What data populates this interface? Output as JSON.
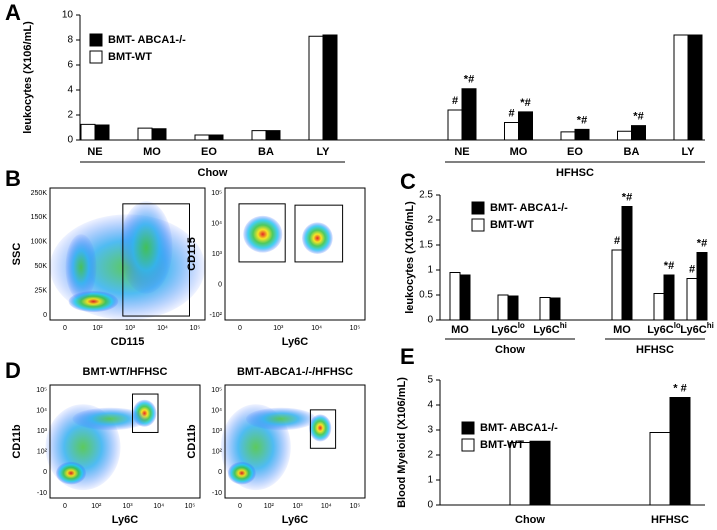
{
  "chart_data": [
    {
      "type": "bar",
      "panel_label": "A",
      "ylabel": "leukocytes (X106/mL)",
      "categories": [
        "NE",
        "MO",
        "EO",
        "BA",
        "LY",
        "NE",
        "MO",
        "EO",
        "BA",
        "LY"
      ],
      "group_labels": [
        "Chow",
        "HFHSC"
      ],
      "series": [
        {
          "name": "BMT- ABCA1-/-",
          "color": "#000000",
          "values": [
            1.2,
            0.9,
            0.4,
            0.75,
            8.4,
            4.1,
            2.25,
            0.85,
            1.15,
            8.4
          ],
          "markers": [
            null,
            null,
            null,
            null,
            null,
            "*#",
            "*#",
            "*#",
            "*#",
            null
          ]
        },
        {
          "name": "BMT-WT",
          "color": "#ffffff",
          "values": [
            1.25,
            0.95,
            0.4,
            0.75,
            8.3,
            2.4,
            1.4,
            0.65,
            0.7,
            8.4
          ],
          "markers": [
            null,
            null,
            null,
            null,
            null,
            "#",
            "#",
            null,
            null,
            null
          ]
        }
      ],
      "ylim": [
        0,
        10
      ],
      "yticks": [
        0,
        2,
        4,
        6,
        8,
        10
      ]
    },
    {
      "type": "bar",
      "panel_label": "C",
      "ylabel": "leukocytes (X106/mL)",
      "categories": [
        "MO",
        "Ly6C",
        "Ly6C",
        "MO",
        "Ly6C",
        "Ly6C"
      ],
      "category_sups": [
        null,
        "lo",
        "hi",
        null,
        "lo",
        "hi"
      ],
      "group_labels": [
        "Chow",
        "HFHSC"
      ],
      "series": [
        {
          "name": "BMT- ABCA1-/-",
          "color": "#000000",
          "values": [
            0.9,
            0.48,
            0.44,
            2.27,
            0.9,
            1.35
          ],
          "markers": [
            null,
            null,
            null,
            "*#",
            "*#",
            "*#"
          ]
        },
        {
          "name": "BMT-WT",
          "color": "#ffffff",
          "values": [
            0.95,
            0.5,
            0.45,
            1.4,
            0.53,
            0.83
          ],
          "markers": [
            null,
            null,
            null,
            "#",
            null,
            "#"
          ]
        }
      ],
      "ylim": [
        0,
        2.5
      ],
      "yticks": [
        0,
        0.5,
        1,
        1.5,
        2,
        2.5
      ]
    },
    {
      "type": "bar",
      "panel_label": "E",
      "ylabel": "Blood Myeloid (X106/mL)",
      "categories": [
        "Chow",
        "HFHSC"
      ],
      "series": [
        {
          "name": "BMT- ABCA1-/-",
          "color": "#000000",
          "values": [
            2.55,
            4.3
          ],
          "markers": [
            null,
            "* #"
          ]
        },
        {
          "name": "BMT-WT",
          "color": "#ffffff",
          "values": [
            2.5,
            2.9
          ],
          "markers": [
            null,
            null
          ]
        }
      ],
      "ylim": [
        0,
        5
      ],
      "yticks": [
        0,
        1,
        2,
        3,
        4,
        5
      ]
    }
  ],
  "flow_panels": [
    {
      "panel_label": "B",
      "plots": [
        {
          "xlabel": "CD115",
          "ylabel": "SSC",
          "xticks": [
            "0",
            "10²",
            "10³",
            "10⁴",
            "10⁵"
          ],
          "yticks": [
            "250K",
            "150K",
            "100K",
            "50K",
            "25K",
            "0"
          ]
        },
        {
          "xlabel": "Ly6C",
          "ylabel": "CD115",
          "xticks": [
            "0",
            "10³",
            "10⁴",
            "10⁵"
          ],
          "yticks": [
            "10⁵",
            "10⁴",
            "10³",
            "0",
            "-10²"
          ]
        }
      ]
    },
    {
      "panel_label": "D",
      "plots": [
        {
          "title": "BMT-WT/HFHSC",
          "xlabel": "Ly6C",
          "ylabel": "CD11b",
          "xticks": [
            "0",
            "10²",
            "10³",
            "10⁴",
            "10⁵"
          ],
          "yticks": [
            "10⁵",
            "10⁴",
            "10³",
            "10²",
            "0",
            "-10"
          ]
        },
        {
          "title": "BMT-ABCA1-/-/HFHSC",
          "xlabel": "Ly6C",
          "ylabel": "CD11b",
          "xticks": [
            "0",
            "10²",
            "10³",
            "10⁴",
            "10⁵"
          ],
          "yticks": [
            "10⁵",
            "10⁴",
            "10³",
            "10²",
            "0",
            "-10"
          ]
        }
      ]
    }
  ]
}
